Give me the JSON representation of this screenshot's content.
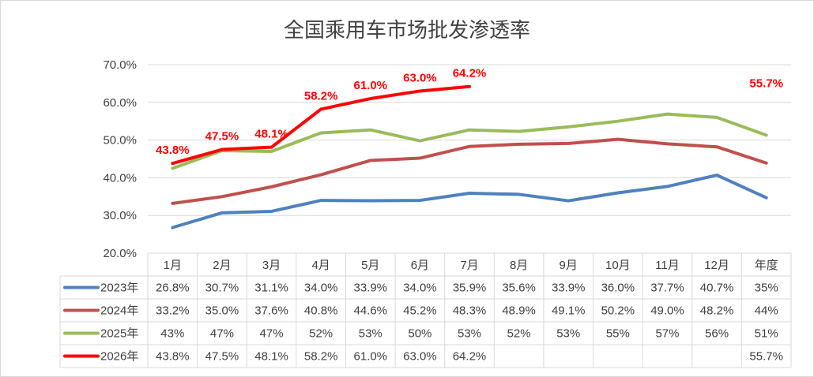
{
  "chart_data": {
    "type": "line",
    "title": "全国乘用车市场批发渗透率",
    "categories": [
      "1月",
      "2月",
      "3月",
      "4月",
      "5月",
      "6月",
      "7月",
      "8月",
      "9月",
      "10月",
      "11月",
      "12月",
      "年度"
    ],
    "y_ticks": [
      "20.0%",
      "30.0%",
      "40.0%",
      "50.0%",
      "60.0%",
      "70.0%"
    ],
    "ylim": [
      20,
      70
    ],
    "grid": true,
    "legend": "data-table-bottom",
    "series": [
      {
        "name": "2023年",
        "color": "#4f81bd",
        "values": [
          26.8,
          30.7,
          31.1,
          34.0,
          33.9,
          34.0,
          35.9,
          35.6,
          33.9,
          36.0,
          37.7,
          40.7,
          34.7
        ],
        "table": [
          "26.8%",
          "30.7%",
          "31.1%",
          "34.0%",
          "33.9%",
          "34.0%",
          "35.9%",
          "35.6%",
          "33.9%",
          "36.0%",
          "37.7%",
          "40.7%",
          "35%"
        ]
      },
      {
        "name": "2024年",
        "color": "#c0504d",
        "values": [
          33.2,
          35.0,
          37.6,
          40.8,
          44.6,
          45.2,
          48.3,
          48.9,
          49.1,
          50.2,
          49.0,
          48.2,
          43.9
        ],
        "table": [
          "33.2%",
          "35.0%",
          "37.6%",
          "40.8%",
          "44.6%",
          "45.2%",
          "48.3%",
          "48.9%",
          "49.1%",
          "50.2%",
          "49.0%",
          "48.2%",
          "44%"
        ]
      },
      {
        "name": "2025年",
        "color": "#9bbb59",
        "values": [
          42.5,
          47.2,
          47.0,
          51.9,
          52.7,
          49.8,
          52.7,
          52.3,
          53.5,
          55.0,
          56.9,
          56.0,
          51.3
        ],
        "table": [
          "43%",
          "47%",
          "47%",
          "52%",
          "53%",
          "50%",
          "53%",
          "52%",
          "53%",
          "55%",
          "57%",
          "56%",
          "51%"
        ]
      },
      {
        "name": "2026年",
        "color": "#ff0000",
        "values": [
          43.8,
          47.5,
          48.1,
          58.2,
          61.0,
          63.0,
          64.2,
          null,
          null,
          null,
          null,
          null,
          55.7
        ],
        "table": [
          "43.8%",
          "47.5%",
          "48.1%",
          "58.2%",
          "61.0%",
          "63.0%",
          "64.2%",
          "",
          "",
          "",
          "",
          "",
          "55.7%"
        ],
        "data_labels": [
          "43.8%",
          "47.5%",
          "48.1%",
          "58.2%",
          "61.0%",
          "63.0%",
          "64.2%",
          "",
          "",
          "",
          "",
          "",
          "55.7%"
        ],
        "connect_last": false
      }
    ]
  }
}
